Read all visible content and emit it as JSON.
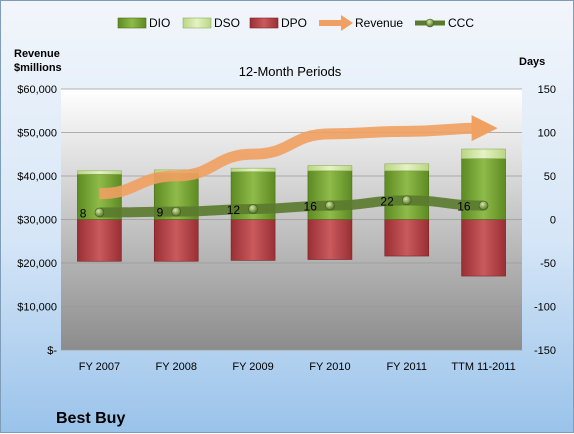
{
  "chart_data": {
    "type": "bar",
    "title": "12-Month Periods",
    "company": "Best Buy",
    "y_left_label": [
      "Revenue",
      "$millions"
    ],
    "y_right_label": "Days",
    "categories": [
      "FY 2007",
      "FY 2008",
      "FY 2009",
      "FY 2010",
      "FY 2011",
      "TTM 11-2011"
    ],
    "y_left": {
      "min": 0,
      "max": 60000,
      "step": 10000,
      "tick_labels": [
        "$-",
        "$10,000",
        "$20,000",
        "$30,000",
        "$40,000",
        "$50,000",
        "$60,000"
      ]
    },
    "y_right": {
      "min": -150,
      "max": 150,
      "step": 50,
      "tick_labels": [
        "-150",
        "-100",
        "-50",
        "0",
        "50",
        "100",
        "150"
      ]
    },
    "series": [
      {
        "name": "DIO",
        "type": "stacked_bar_positive",
        "color": "#6f9a2e",
        "values": [
          52,
          53,
          55,
          56,
          56,
          70
        ]
      },
      {
        "name": "DSO",
        "type": "stacked_bar_positive",
        "color": "#cfe2a0",
        "values": [
          4,
          4,
          4,
          6,
          8,
          11
        ]
      },
      {
        "name": "DPO",
        "type": "stacked_bar_negative",
        "color": "#b04044",
        "values": [
          -48,
          -48,
          -47,
          -46,
          -42,
          -65
        ]
      },
      {
        "name": "Revenue",
        "type": "line",
        "axis": "left",
        "color": "#f0a060",
        "values": [
          35934,
          40023,
          45015,
          49694,
          50272,
          51000
        ]
      },
      {
        "name": "CCC",
        "type": "line",
        "axis": "right",
        "color": "#5a7a2e",
        "values": [
          8,
          9,
          12,
          16,
          22,
          16
        ]
      }
    ],
    "ccc_labels": [
      "8",
      "9",
      "12",
      "16",
      "22",
      "16"
    ],
    "legend_position": "top"
  },
  "colors": {
    "plot_top": "#ffffff",
    "plot_bottom": "#8c8c8c",
    "dio": "#6f9a2e",
    "dso": "#cfe2a0",
    "dpo": "#b04044",
    "revenue": "#f0a060",
    "ccc": "#5a7a2e"
  }
}
